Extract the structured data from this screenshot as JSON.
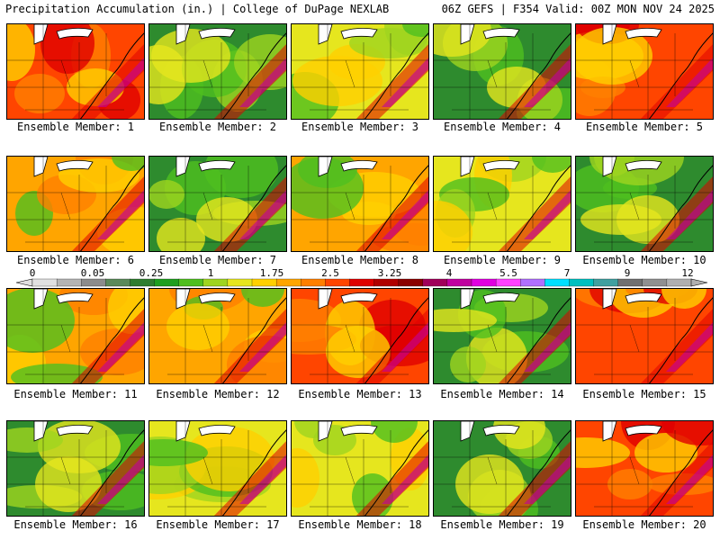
{
  "header": {
    "title": "Precipitation Accumulation (in.) | College of DuPage NEXLAB",
    "valid": "06Z GEFS | F354 Valid: 00Z MON NOV 24 2025"
  },
  "caption_prefix": "Ensemble Member: ",
  "members": [
    {
      "id": 1,
      "caption": "Ensemble Member: 1",
      "tone": "red"
    },
    {
      "id": 2,
      "caption": "Ensemble Member: 2",
      "tone": "green"
    },
    {
      "id": 3,
      "caption": "Ensemble Member: 3",
      "tone": "yellow"
    },
    {
      "id": 4,
      "caption": "Ensemble Member: 4",
      "tone": "green"
    },
    {
      "id": 5,
      "caption": "Ensemble Member: 5",
      "tone": "red"
    },
    {
      "id": 6,
      "caption": "Ensemble Member: 6",
      "tone": "orange"
    },
    {
      "id": 7,
      "caption": "Ensemble Member: 7",
      "tone": "green"
    },
    {
      "id": 8,
      "caption": "Ensemble Member: 8",
      "tone": "orange"
    },
    {
      "id": 9,
      "caption": "Ensemble Member: 9",
      "tone": "yellow"
    },
    {
      "id": 10,
      "caption": "Ensemble Member: 10",
      "tone": "green"
    },
    {
      "id": 11,
      "caption": "Ensemble Member: 11",
      "tone": "orange"
    },
    {
      "id": 12,
      "caption": "Ensemble Member: 12",
      "tone": "orange"
    },
    {
      "id": 13,
      "caption": "Ensemble Member: 13",
      "tone": "red"
    },
    {
      "id": 14,
      "caption": "Ensemble Member: 14",
      "tone": "green"
    },
    {
      "id": 15,
      "caption": "Ensemble Member: 15",
      "tone": "red"
    },
    {
      "id": 16,
      "caption": "Ensemble Member: 16",
      "tone": "green"
    },
    {
      "id": 17,
      "caption": "Ensemble Member: 17",
      "tone": "yellow"
    },
    {
      "id": 18,
      "caption": "Ensemble Member: 18",
      "tone": "yellow"
    },
    {
      "id": 19,
      "caption": "Ensemble Member: 19",
      "tone": "green"
    },
    {
      "id": 20,
      "caption": "Ensemble Member: 20",
      "tone": "red"
    }
  ],
  "legend": {
    "labels": [
      "0",
      "0.05",
      "0.25",
      "1",
      "1.75",
      "2.5",
      "3.25",
      "4",
      "5.5",
      "7",
      "9",
      "12"
    ],
    "colors": [
      "#e0e0e0",
      "#b4b4b4",
      "#8c8c8c",
      "#5a8a5a",
      "#2f7d2f",
      "#1f9f1f",
      "#4fbf1f",
      "#9fd41f",
      "#e6e61e",
      "#ffd000",
      "#ffa500",
      "#ff7f00",
      "#ff4500",
      "#e00000",
      "#b00000",
      "#8b0000",
      "#a0005a",
      "#c000a0",
      "#e000e0",
      "#ff40ff",
      "#b070ff",
      "#00e0ff",
      "#00c0c0",
      "#40a0a0",
      "#707070",
      "#909090",
      "#b0b0b0"
    ]
  },
  "tone_colors": {
    "green": [
      "#2e8b2e",
      "#4fbf1f",
      "#9fd41f",
      "#e6e61e"
    ],
    "yellow": [
      "#e6e61e",
      "#9fd41f",
      "#ffd000",
      "#4fbf1f"
    ],
    "orange": [
      "#ffa500",
      "#ff7f00",
      "#ffd000",
      "#4fbf1f"
    ],
    "red": [
      "#ff4500",
      "#ff7f00",
      "#e00000",
      "#ffd000"
    ]
  }
}
